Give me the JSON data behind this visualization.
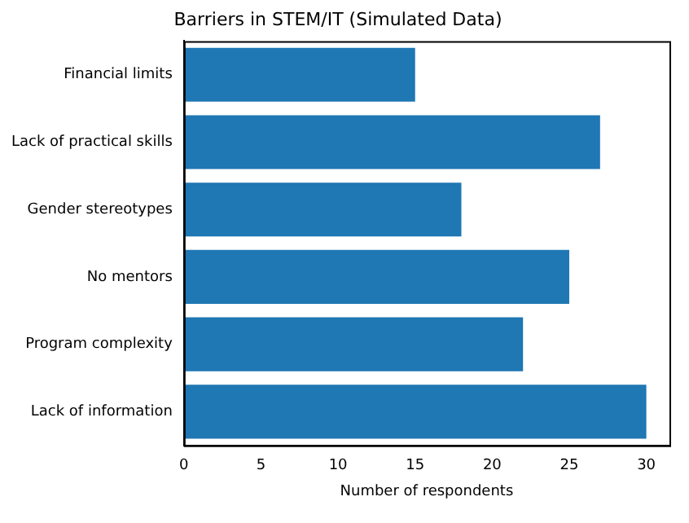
{
  "chart_data": {
    "type": "bar",
    "orientation": "horizontal",
    "title": "Barriers in STEM/IT (Simulated Data)",
    "xlabel": "Number of respondents",
    "categories": [
      "Financial limits",
      "Lack of practical skills",
      "Gender stereotypes",
      "No mentors",
      "Program complexity",
      "Lack of information"
    ],
    "values": [
      15,
      27,
      18,
      25,
      22,
      30
    ],
    "color": "#1f77b4",
    "xlim": [
      0,
      31.5
    ],
    "xticks": [
      0,
      5,
      10,
      15,
      20,
      25,
      30
    ],
    "grid": false,
    "legend": false
  }
}
